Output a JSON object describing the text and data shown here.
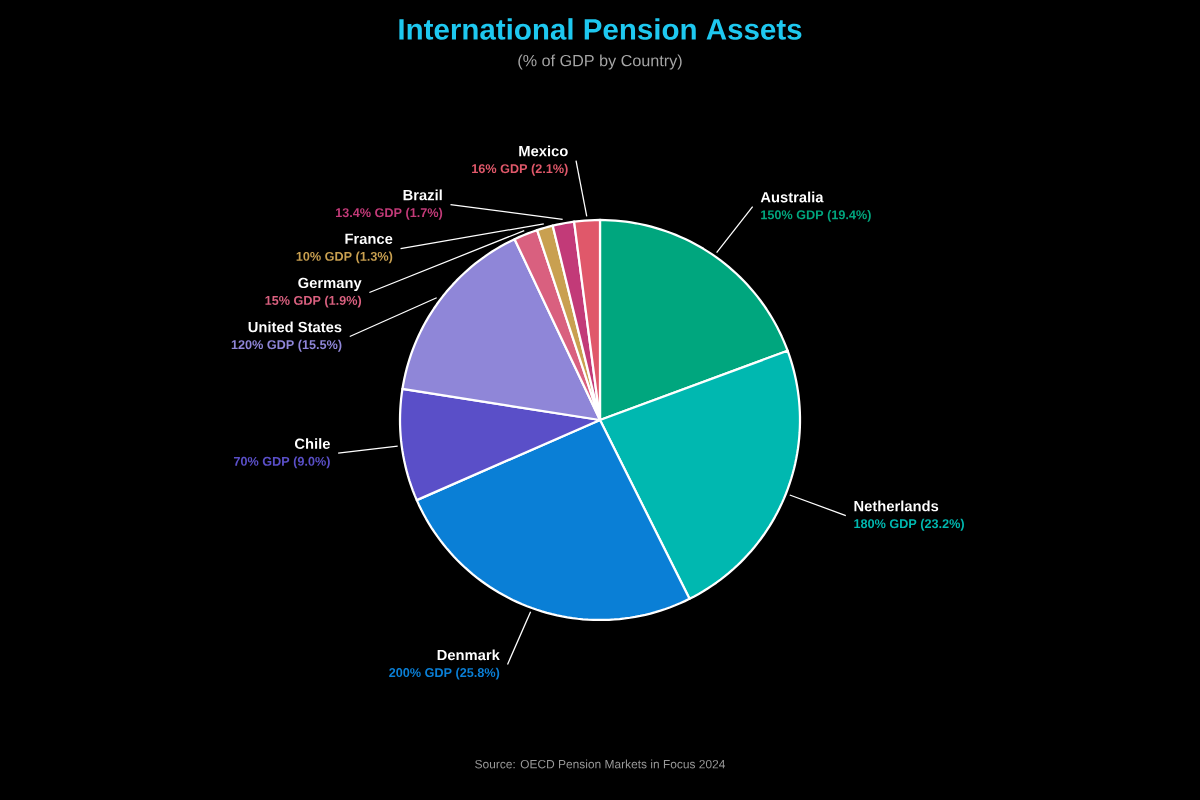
{
  "chart_data": {
    "type": "pie",
    "title": "International Pension Assets",
    "subtitle": "(% of GDP by Country)",
    "categories": [
      "Australia",
      "Netherlands",
      "Denmark",
      "Chile",
      "United States",
      "Germany",
      "France",
      "Brazil",
      "Mexico"
    ],
    "values": [
      150,
      180,
      200,
      70,
      120,
      15,
      10,
      13.4,
      16
    ],
    "colors": [
      "#00a67e",
      "#00b8b0",
      "#0a7fd6",
      "#5a4fc8",
      "#8f86d8",
      "#d9607f",
      "#c9a050",
      "#c23a78",
      "#e0586a"
    ],
    "value_labels": [
      "150% GDP (19.4%)",
      "180% GDP (23.2%)",
      "200% GDP (25.8%)",
      "70% GDP (9.0%)",
      "120% GDP (15.5%)",
      "15% GDP (1.9%)",
      "10% GDP (1.3%)",
      "13.4% GDP (1.7%)",
      "16% GDP (2.1%)"
    ],
    "annotations": [
      "Source: OECD Pension Markets in Focus 2024"
    ]
  }
}
